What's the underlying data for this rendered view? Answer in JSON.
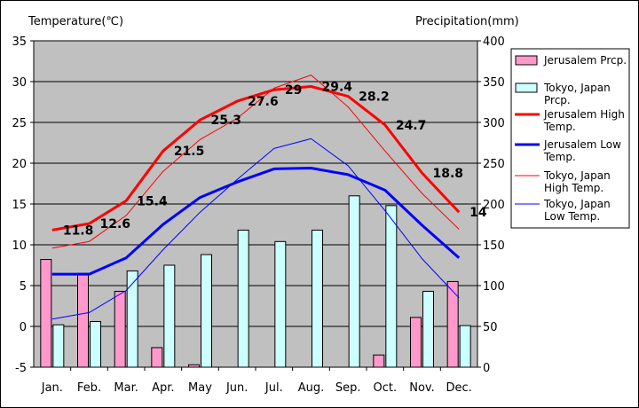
{
  "chart_data": {
    "type": "bar+line",
    "categories": [
      "Jan.",
      "Feb.",
      "Mar.",
      "Apr.",
      "May",
      "Jun.",
      "Jul.",
      "Aug.",
      "Sep.",
      "Oct.",
      "Nov.",
      "Dec."
    ],
    "y_left": {
      "label": "Temperature(℃)",
      "range": [
        -5,
        35
      ],
      "ticks": [
        -5,
        0,
        5,
        10,
        15,
        20,
        25,
        30,
        35
      ]
    },
    "y_right": {
      "label": "Precipitation(mm)",
      "range": [
        0,
        400
      ],
      "ticks": [
        0,
        50,
        100,
        150,
        200,
        250,
        300,
        350,
        400
      ]
    },
    "grid": true,
    "bar_series": [
      {
        "name": "Jerusalem Prcp.",
        "axis": "right",
        "color": "#ff99cc",
        "values": [
          132,
          115,
          93,
          24,
          3,
          0,
          0,
          0,
          0,
          15,
          61,
          105
        ]
      },
      {
        "name": "Tokyo, Japan Prcp.",
        "axis": "right",
        "color": "#ccffff",
        "values": [
          52,
          56,
          118,
          125,
          138,
          168,
          154,
          168,
          210,
          198,
          93,
          51
        ]
      }
    ],
    "line_series": [
      {
        "name": "Jerusalem High Temp.",
        "axis": "left",
        "color": "#ff0000",
        "width": "thick",
        "values": [
          11.8,
          12.6,
          15.4,
          21.5,
          25.3,
          27.6,
          29.0,
          29.4,
          28.2,
          24.7,
          18.8,
          14.0
        ],
        "labels": [
          "11.8",
          "12.6",
          "15.4",
          "21.5",
          "25.3",
          "27.6",
          "29",
          "29.4",
          "28.2",
          "24.7",
          "18.8",
          "14"
        ]
      },
      {
        "name": "Jerusalem Low Temp.",
        "axis": "left",
        "color": "#0000ff",
        "width": "thick",
        "values": [
          6.4,
          6.4,
          8.4,
          12.5,
          15.8,
          17.7,
          19.3,
          19.4,
          18.6,
          16.7,
          12.4,
          8.4
        ]
      },
      {
        "name": "Tokyo, Japan High Temp.",
        "axis": "left",
        "color": "#ff0000",
        "width": "thin",
        "values": [
          9.6,
          10.4,
          13.6,
          19.0,
          22.9,
          25.5,
          29.2,
          30.8,
          26.9,
          21.5,
          16.3,
          11.9
        ]
      },
      {
        "name": "Tokyo, Japan Low Temp.",
        "axis": "left",
        "color": "#0000ff",
        "width": "thin",
        "values": [
          0.9,
          1.7,
          4.4,
          9.4,
          14.0,
          18.0,
          21.8,
          23.0,
          19.7,
          14.2,
          8.3,
          3.5
        ]
      }
    ],
    "legend": {
      "position": "right",
      "entries": [
        {
          "type": "bar",
          "color": "#ff99cc",
          "lines": [
            "Jerusalem Prcp."
          ]
        },
        {
          "type": "bar",
          "color": "#ccffff",
          "lines": [
            "Tokyo, Japan",
            "Prcp."
          ]
        },
        {
          "type": "line-thick",
          "color": "#ff0000",
          "lines": [
            "Jerusalem High",
            "Temp."
          ]
        },
        {
          "type": "line-thick",
          "color": "#0000ff",
          "lines": [
            "Jerusalem Low",
            "Temp."
          ]
        },
        {
          "type": "line-thin",
          "color": "#ff0000",
          "lines": [
            "Tokyo, Japan",
            "High Temp."
          ]
        },
        {
          "type": "line-thin",
          "color": "#0000ff",
          "lines": [
            "Tokyo, Japan",
            "Low Temp."
          ]
        }
      ]
    },
    "colors": {
      "plot_background": "#c0c0c0",
      "grid": "#000000"
    }
  }
}
